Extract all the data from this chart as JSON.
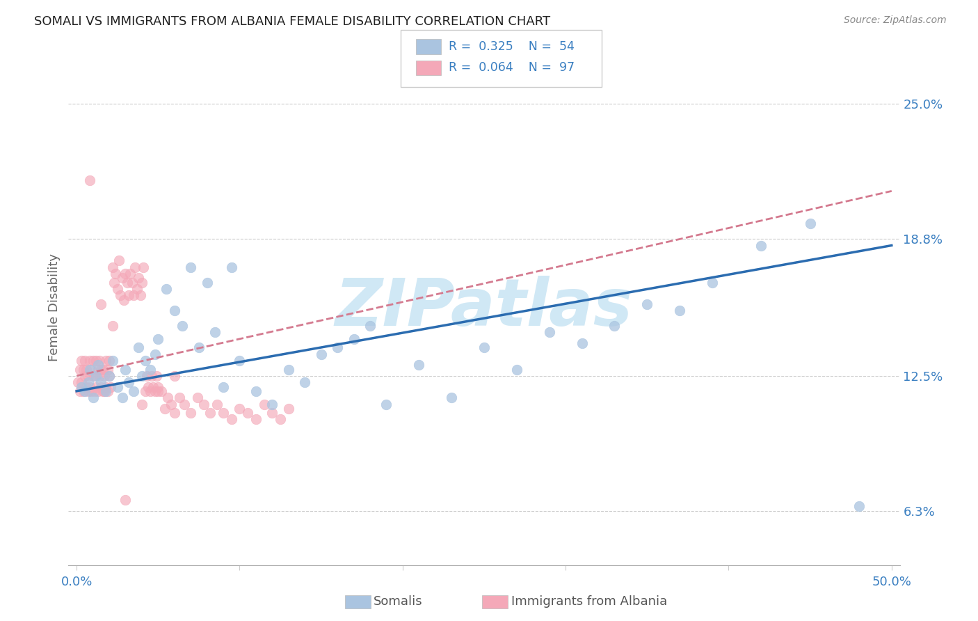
{
  "title": "SOMALI VS IMMIGRANTS FROM ALBANIA FEMALE DISABILITY CORRELATION CHART",
  "source": "Source: ZipAtlas.com",
  "xlabel_somali": "Somalis",
  "xlabel_albania": "Immigrants from Albania",
  "ylabel": "Female Disability",
  "xlim": [
    -0.005,
    0.505
  ],
  "ylim": [
    0.038,
    0.275
  ],
  "xtick_values": [
    0.0,
    0.1,
    0.2,
    0.3,
    0.4,
    0.5
  ],
  "xtick_labels": [
    "0.0%",
    "",
    "",
    "",
    "",
    "50.0%"
  ],
  "ytick_values": [
    0.063,
    0.125,
    0.188,
    0.25
  ],
  "ytick_labels": [
    "6.3%",
    "12.5%",
    "18.8%",
    "25.0%"
  ],
  "somali_R": 0.325,
  "somali_N": 54,
  "albania_R": 0.064,
  "albania_N": 97,
  "somali_color": "#aac4e0",
  "albania_color": "#f4a8b8",
  "somali_line_color": "#2b6cb0",
  "albania_line_color": "#d47a8f",
  "watermark_color": "#d0e8f5",
  "grid_color": "#cccccc",
  "title_fontsize": 13,
  "axis_fontsize": 13,
  "marker_size": 110,
  "somali_alpha": 0.75,
  "albania_alpha": 0.65,
  "somali_x": [
    0.003,
    0.005,
    0.007,
    0.008,
    0.01,
    0.012,
    0.013,
    0.015,
    0.018,
    0.02,
    0.022,
    0.025,
    0.028,
    0.03,
    0.032,
    0.035,
    0.038,
    0.04,
    0.042,
    0.045,
    0.048,
    0.05,
    0.055,
    0.06,
    0.065,
    0.07,
    0.075,
    0.08,
    0.085,
    0.09,
    0.095,
    0.1,
    0.11,
    0.12,
    0.13,
    0.14,
    0.15,
    0.16,
    0.17,
    0.18,
    0.19,
    0.21,
    0.23,
    0.25,
    0.27,
    0.29,
    0.31,
    0.33,
    0.35,
    0.37,
    0.39,
    0.42,
    0.45,
    0.48
  ],
  "somali_y": [
    0.12,
    0.118,
    0.122,
    0.128,
    0.115,
    0.125,
    0.13,
    0.122,
    0.118,
    0.125,
    0.132,
    0.12,
    0.115,
    0.128,
    0.122,
    0.118,
    0.138,
    0.125,
    0.132,
    0.128,
    0.135,
    0.142,
    0.165,
    0.155,
    0.148,
    0.175,
    0.138,
    0.168,
    0.145,
    0.12,
    0.175,
    0.132,
    0.118,
    0.112,
    0.128,
    0.122,
    0.135,
    0.138,
    0.142,
    0.148,
    0.112,
    0.13,
    0.115,
    0.138,
    0.128,
    0.145,
    0.14,
    0.148,
    0.158,
    0.155,
    0.168,
    0.185,
    0.195,
    0.065
  ],
  "albania_x": [
    0.001,
    0.002,
    0.002,
    0.003,
    0.003,
    0.004,
    0.004,
    0.005,
    0.005,
    0.006,
    0.006,
    0.007,
    0.007,
    0.008,
    0.008,
    0.009,
    0.009,
    0.01,
    0.01,
    0.011,
    0.011,
    0.012,
    0.012,
    0.013,
    0.013,
    0.014,
    0.014,
    0.015,
    0.015,
    0.016,
    0.016,
    0.017,
    0.017,
    0.018,
    0.018,
    0.019,
    0.019,
    0.02,
    0.02,
    0.021,
    0.022,
    0.023,
    0.024,
    0.025,
    0.026,
    0.027,
    0.028,
    0.029,
    0.03,
    0.031,
    0.032,
    0.033,
    0.034,
    0.035,
    0.036,
    0.037,
    0.038,
    0.039,
    0.04,
    0.041,
    0.042,
    0.043,
    0.044,
    0.045,
    0.046,
    0.047,
    0.048,
    0.049,
    0.05,
    0.052,
    0.054,
    0.056,
    0.058,
    0.06,
    0.063,
    0.066,
    0.07,
    0.074,
    0.078,
    0.082,
    0.086,
    0.09,
    0.095,
    0.1,
    0.105,
    0.11,
    0.115,
    0.12,
    0.125,
    0.13,
    0.008,
    0.015,
    0.022,
    0.03,
    0.04,
    0.05,
    0.06
  ],
  "albania_y": [
    0.122,
    0.128,
    0.118,
    0.132,
    0.122,
    0.128,
    0.118,
    0.125,
    0.132,
    0.12,
    0.128,
    0.118,
    0.125,
    0.132,
    0.12,
    0.128,
    0.118,
    0.125,
    0.132,
    0.118,
    0.125,
    0.132,
    0.12,
    0.128,
    0.118,
    0.125,
    0.132,
    0.12,
    0.128,
    0.118,
    0.128,
    0.118,
    0.125,
    0.132,
    0.12,
    0.128,
    0.118,
    0.125,
    0.132,
    0.12,
    0.175,
    0.168,
    0.172,
    0.165,
    0.178,
    0.162,
    0.17,
    0.16,
    0.172,
    0.168,
    0.162,
    0.172,
    0.168,
    0.162,
    0.175,
    0.165,
    0.17,
    0.162,
    0.168,
    0.175,
    0.118,
    0.125,
    0.12,
    0.118,
    0.125,
    0.12,
    0.118,
    0.125,
    0.12,
    0.118,
    0.11,
    0.115,
    0.112,
    0.108,
    0.115,
    0.112,
    0.108,
    0.115,
    0.112,
    0.108,
    0.112,
    0.108,
    0.105,
    0.11,
    0.108,
    0.105,
    0.112,
    0.108,
    0.105,
    0.11,
    0.215,
    0.158,
    0.148,
    0.068,
    0.112,
    0.118,
    0.125
  ]
}
